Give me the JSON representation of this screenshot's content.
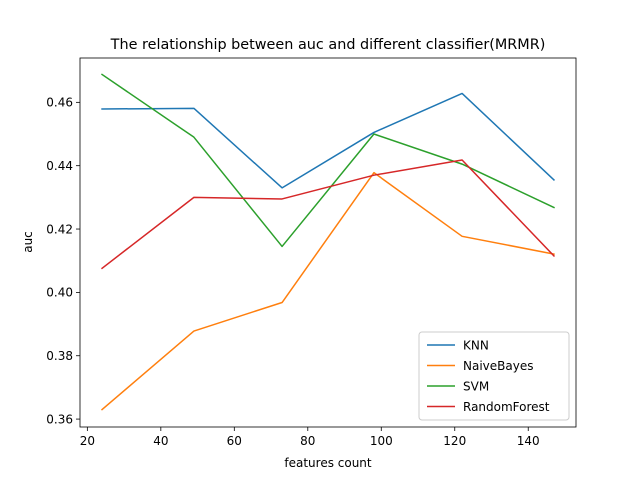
{
  "chart_data": {
    "type": "line",
    "title": "The relationship between auc and different classifier(MRMR)",
    "xlabel": "features count",
    "ylabel": "auc",
    "xlim": [
      18,
      153
    ],
    "ylim": [
      0.3575,
      0.474
    ],
    "xticks": [
      20,
      40,
      60,
      80,
      100,
      120,
      140
    ],
    "xtick_labels": [
      "20",
      "40",
      "60",
      "80",
      "100",
      "120",
      "140"
    ],
    "yticks": [
      0.36,
      0.38,
      0.4,
      0.42,
      0.44,
      0.46
    ],
    "ytick_labels": [
      "0.36",
      "0.38",
      "0.40",
      "0.42",
      "0.44",
      "0.46"
    ],
    "grid": false,
    "legend_position": "lower right",
    "x": [
      24,
      49,
      73,
      98,
      122,
      147
    ],
    "series": [
      {
        "name": "KNN",
        "color": "#1f77b4",
        "values": [
          0.4579,
          0.4581,
          0.433,
          0.4505,
          0.4628,
          0.4355
        ]
      },
      {
        "name": "NaiveBayes",
        "color": "#ff7f0e",
        "values": [
          0.363,
          0.3878,
          0.3968,
          0.4378,
          0.4177,
          0.4121
        ]
      },
      {
        "name": "SVM",
        "color": "#2ca02c",
        "values": [
          0.4688,
          0.449,
          0.4145,
          0.45,
          0.4405,
          0.4268
        ]
      },
      {
        "name": "RandomForest",
        "color": "#d62728",
        "values": [
          0.4076,
          0.43,
          0.4295,
          0.437,
          0.4418,
          0.4115
        ]
      }
    ]
  }
}
